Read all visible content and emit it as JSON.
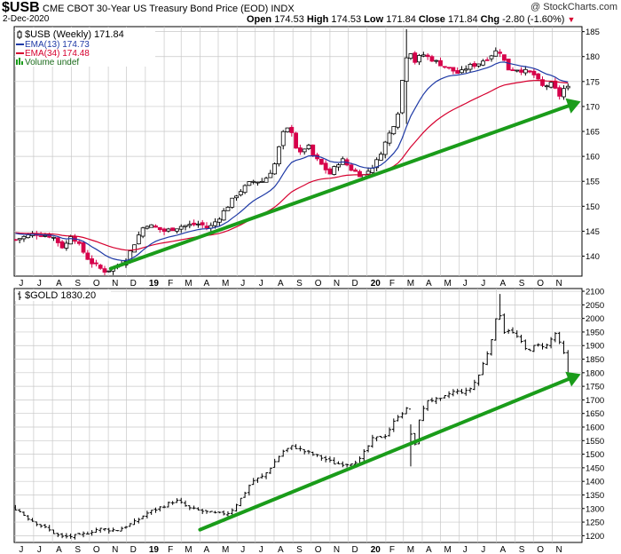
{
  "header": {
    "symbol": "$USB",
    "description": "CME CBOT 30-Year US Treasury Bond Price (EOD)",
    "exchange": "INDX",
    "watermark": "@ StockCharts.com",
    "date": "2-Dec-2020",
    "open_label": "Open",
    "open": "174.53",
    "high_label": "High",
    "high": "174.53",
    "low_label": "Low",
    "low": "171.84",
    "close_label": "Close",
    "close": "171.84",
    "chg_label": "Chg",
    "chg": "-2.80 (-1.60%)",
    "chg_arrow": "▼"
  },
  "colors": {
    "up": "#000000",
    "down": "#d6004a",
    "ema13": "#1f3aa6",
    "ema34": "#d6002f",
    "trendline": "#1a9c1a",
    "grid": "#c8c8c8"
  },
  "months": [
    "J",
    "J",
    "A",
    "S",
    "O",
    "N",
    "D",
    "19",
    "F",
    "M",
    "A",
    "M",
    "J",
    "J",
    "A",
    "S",
    "O",
    "N",
    "D",
    "20",
    "F",
    "M",
    "A",
    "M",
    "J",
    "J",
    "A",
    "S",
    "O",
    "N"
  ],
  "chart_data": [
    {
      "type": "candlestick",
      "title": "$USB (Weekly) 171.84",
      "legend": [
        {
          "name": "$USB (Weekly) 171.84",
          "marker": "candle"
        },
        {
          "name": "EMA(13) 174.73",
          "color": "#1f3aa6"
        },
        {
          "name": "EMA(34) 174.48",
          "color": "#d6002f"
        },
        {
          "name": "Volume undef",
          "color": "#1a9c1a"
        }
      ],
      "yticks": [
        140,
        145,
        150,
        155,
        160,
        165,
        170,
        175,
        180,
        185
      ],
      "ylim": [
        136,
        186
      ],
      "grid": true,
      "legend_position": "top-left",
      "anchors": [
        [
          "2018-06-01",
          143.3
        ],
        [
          "2018-07-01",
          144.5
        ],
        [
          "2018-08-01",
          144.0
        ],
        [
          "2018-08-20",
          141.5
        ],
        [
          "2018-09-01",
          144.5
        ],
        [
          "2018-10-01",
          139.0
        ],
        [
          "2018-10-25",
          137.0
        ],
        [
          "2018-11-10",
          137.5
        ],
        [
          "2018-12-01",
          139.5
        ],
        [
          "2018-12-20",
          144.0
        ],
        [
          "2019-01-01",
          146.5
        ],
        [
          "2019-02-01",
          145.0
        ],
        [
          "2019-03-01",
          146.0
        ],
        [
          "2019-04-01",
          146.5
        ],
        [
          "2019-04-15",
          145.5
        ],
        [
          "2019-05-01",
          147.5
        ],
        [
          "2019-06-01",
          152.5
        ],
        [
          "2019-06-25",
          155.0
        ],
        [
          "2019-07-15",
          155.0
        ],
        [
          "2019-08-01",
          158.0
        ],
        [
          "2019-08-15",
          164.5
        ],
        [
          "2019-08-28",
          166.0
        ],
        [
          "2019-09-10",
          160.0
        ],
        [
          "2019-09-25",
          162.5
        ],
        [
          "2019-10-01",
          160.5
        ],
        [
          "2019-11-01",
          156.5
        ],
        [
          "2019-11-20",
          159.5
        ],
        [
          "2019-12-05",
          157.5
        ],
        [
          "2019-12-25",
          156.0
        ],
        [
          "2020-01-15",
          158.5
        ],
        [
          "2020-02-01",
          163.0
        ],
        [
          "2020-02-20",
          168.0
        ],
        [
          "2020-03-01",
          177.0
        ],
        [
          "2020-03-09",
          182.0
        ],
        [
          "2020-03-20",
          179.0
        ],
        [
          "2020-04-01",
          180.5
        ],
        [
          "2020-05-01",
          178.5
        ],
        [
          "2020-06-01",
          176.5
        ],
        [
          "2020-06-15",
          178.0
        ],
        [
          "2020-07-01",
          178.5
        ],
        [
          "2020-07-20",
          180.0
        ],
        [
          "2020-08-05",
          181.5
        ],
        [
          "2020-08-20",
          177.5
        ],
        [
          "2020-09-05",
          177.5
        ],
        [
          "2020-10-01",
          176.5
        ],
        [
          "2020-10-15",
          174.0
        ],
        [
          "2020-11-01",
          174.5
        ],
        [
          "2020-11-12",
          172.0
        ],
        [
          "2020-11-25",
          174.5
        ],
        [
          "2020-12-02",
          171.84
        ]
      ],
      "trendline": [
        [
          "2018-11-05",
          137.5
        ],
        [
          "2020-12-18",
          171.0
        ]
      ]
    },
    {
      "type": "ohlc",
      "title": "$GOLD 1830.20",
      "legend": [
        {
          "name": "$GOLD 1830.20",
          "marker": "bar"
        }
      ],
      "yticks": [
        1200,
        1250,
        1300,
        1350,
        1400,
        1450,
        1500,
        1550,
        1600,
        1650,
        1700,
        1750,
        1800,
        1850,
        1900,
        1950,
        2000,
        2050,
        2100
      ],
      "ylim": [
        1175,
        2110
      ],
      "grid": true,
      "legend_position": "top-left",
      "anchors": [
        [
          "2018-06-01",
          1300
        ],
        [
          "2018-06-25",
          1260
        ],
        [
          "2018-07-15",
          1235
        ],
        [
          "2018-08-15",
          1195
        ],
        [
          "2018-09-15",
          1200
        ],
        [
          "2018-10-15",
          1225
        ],
        [
          "2018-11-15",
          1220
        ],
        [
          "2018-12-15",
          1250
        ],
        [
          "2019-01-01",
          1280
        ],
        [
          "2019-02-10",
          1320
        ],
        [
          "2019-02-20",
          1330
        ],
        [
          "2019-03-15",
          1300
        ],
        [
          "2019-04-15",
          1285
        ],
        [
          "2019-05-01",
          1280
        ],
        [
          "2019-05-20",
          1285
        ],
        [
          "2019-06-10",
          1345
        ],
        [
          "2019-06-25",
          1400
        ],
        [
          "2019-07-15",
          1420
        ],
        [
          "2019-08-15",
          1510
        ],
        [
          "2019-09-01",
          1530
        ],
        [
          "2019-09-20",
          1510
        ],
        [
          "2019-10-15",
          1490
        ],
        [
          "2019-11-10",
          1465
        ],
        [
          "2019-12-01",
          1465
        ],
        [
          "2019-12-20",
          1480
        ],
        [
          "2020-01-10",
          1555
        ],
        [
          "2020-02-01",
          1570
        ],
        [
          "2020-02-20",
          1640
        ],
        [
          "2020-03-09",
          1670
        ],
        [
          "2020-03-17",
          1480
        ],
        [
          "2020-03-25",
          1620
        ],
        [
          "2020-04-10",
          1700
        ],
        [
          "2020-05-01",
          1700
        ],
        [
          "2020-05-20",
          1730
        ],
        [
          "2020-06-15",
          1730
        ],
        [
          "2020-07-01",
          1780
        ],
        [
          "2020-07-20",
          1890
        ],
        [
          "2020-08-05",
          2040
        ],
        [
          "2020-08-12",
          1950
        ],
        [
          "2020-08-20",
          1960
        ],
        [
          "2020-09-05",
          1930
        ],
        [
          "2020-09-20",
          1880
        ],
        [
          "2020-10-05",
          1900
        ],
        [
          "2020-10-25",
          1900
        ],
        [
          "2020-11-05",
          1950
        ],
        [
          "2020-11-20",
          1870
        ],
        [
          "2020-11-27",
          1780
        ],
        [
          "2020-12-02",
          1830.2
        ]
      ],
      "trendline": [
        [
          "2019-04-01",
          1222
        ],
        [
          "2020-12-18",
          1795
        ]
      ]
    }
  ]
}
